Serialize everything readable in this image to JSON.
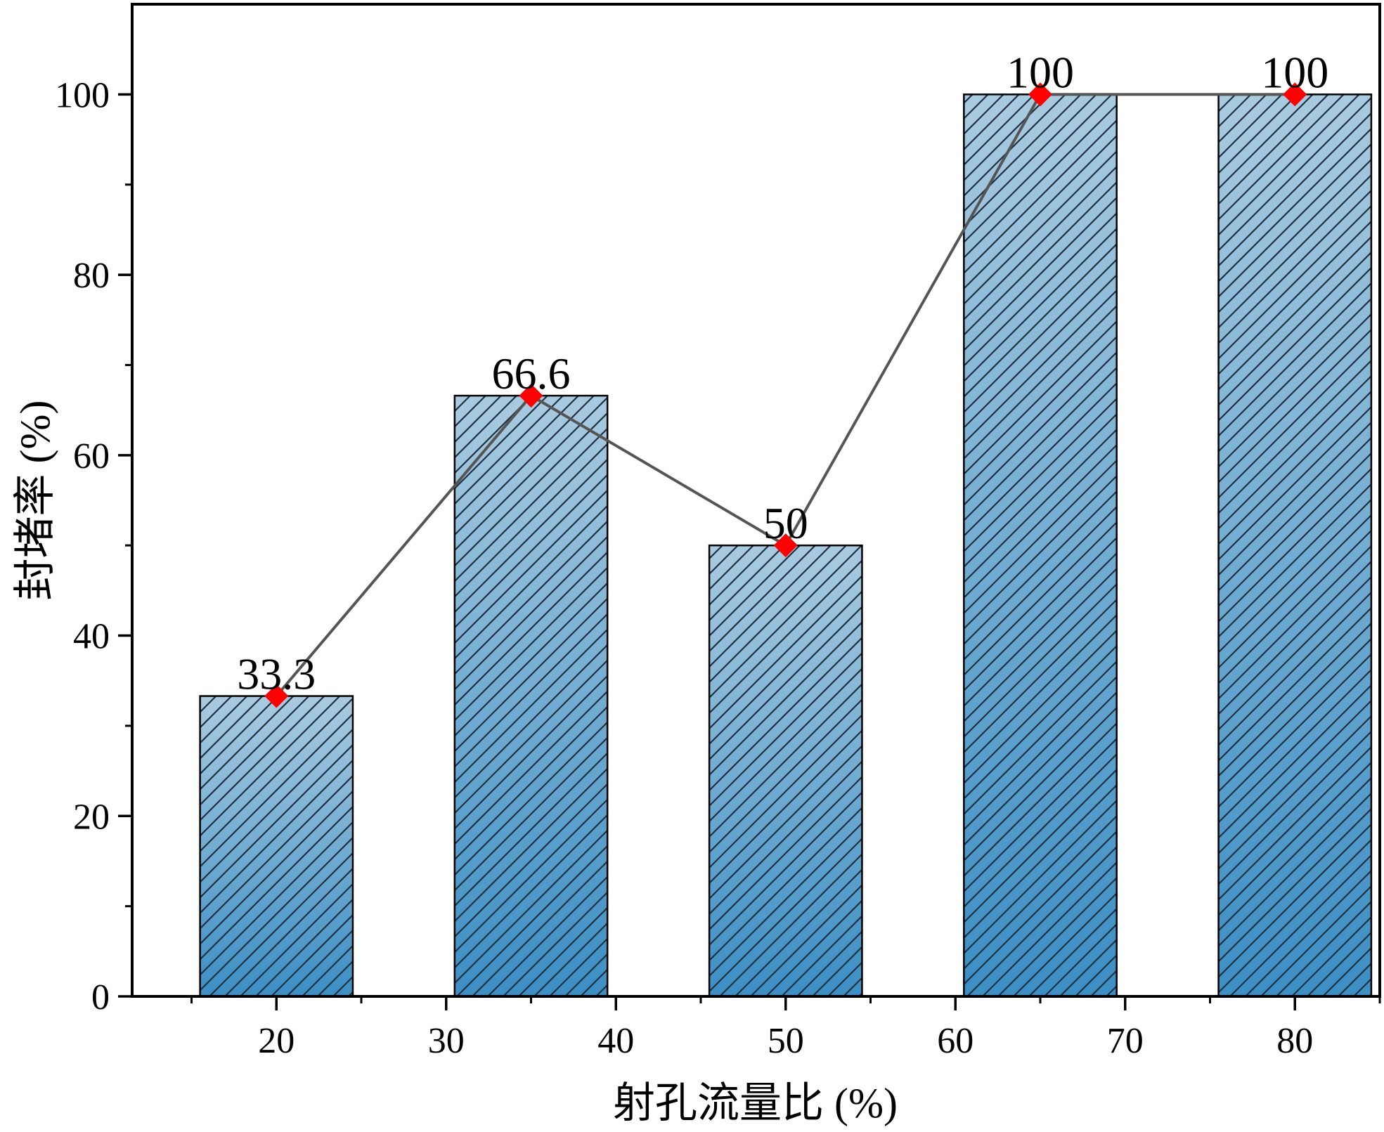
{
  "chart_data": {
    "type": "bar",
    "title": "",
    "xlabel": "射孔流量比 (%)",
    "ylabel": "封堵率 (%)",
    "x_ticks": [
      20,
      30,
      40,
      50,
      60,
      70,
      80
    ],
    "y_ticks": [
      0,
      20,
      40,
      60,
      80,
      100
    ],
    "xlim": [
      11.5,
      85
    ],
    "ylim": [
      0,
      110
    ],
    "bar_width": 9,
    "bars": [
      {
        "x": 20,
        "value": 33.3,
        "label": "33.3"
      },
      {
        "x": 35,
        "value": 66.6,
        "label": "66.6"
      },
      {
        "x": 50,
        "value": 50,
        "label": "50"
      },
      {
        "x": 65,
        "value": 100,
        "label": "100"
      },
      {
        "x": 80,
        "value": 100,
        "label": "100"
      }
    ],
    "line": {
      "points": [
        [
          20,
          33.3
        ],
        [
          35,
          66.6
        ],
        [
          50,
          50
        ],
        [
          65,
          100
        ],
        [
          80,
          100
        ]
      ],
      "marker": "diamond",
      "marker_color": "#ff0000",
      "line_color": "#555555"
    },
    "colors": {
      "bar_top": "#a9cbe0",
      "bar_bottom": "#3c8fc4",
      "hatch": "#1f2f3f",
      "axis": "#000000"
    },
    "grid": false
  }
}
